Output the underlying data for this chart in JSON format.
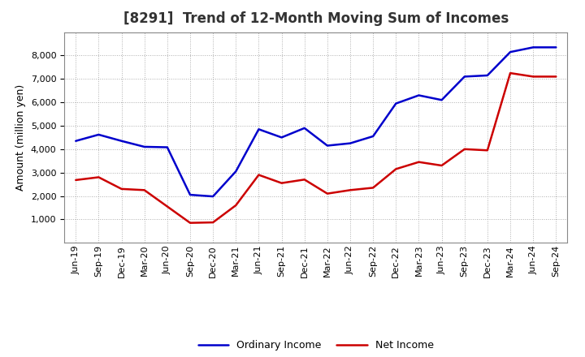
{
  "title": "[8291]  Trend of 12-Month Moving Sum of Incomes",
  "ylabel": "Amount (million yen)",
  "background_color": "#ffffff",
  "plot_bg_color": "#f5f5f5",
  "grid_color": "#999999",
  "x_labels": [
    "Jun-19",
    "Sep-19",
    "Dec-19",
    "Mar-20",
    "Jun-20",
    "Sep-20",
    "Dec-20",
    "Mar-21",
    "Jun-21",
    "Sep-21",
    "Dec-21",
    "Mar-22",
    "Jun-22",
    "Sep-22",
    "Dec-22",
    "Mar-23",
    "Jun-23",
    "Sep-23",
    "Dec-23",
    "Mar-24",
    "Jun-24",
    "Sep-24"
  ],
  "ordinary_income": [
    4350,
    4620,
    4350,
    4100,
    4080,
    2050,
    1980,
    3050,
    4850,
    4500,
    4900,
    4150,
    4250,
    4550,
    5950,
    6300,
    6100,
    7100,
    7150,
    8150,
    8350,
    8350
  ],
  "net_income": [
    2680,
    2800,
    2300,
    2250,
    null,
    850,
    870,
    1600,
    2900,
    2550,
    2700,
    2100,
    2250,
    2350,
    3150,
    3450,
    3300,
    4000,
    3950,
    7250,
    7100,
    7100
  ],
  "ordinary_color": "#0000cc",
  "net_color": "#cc0000",
  "ylim": [
    0,
    9000
  ],
  "yticks": [
    1000,
    2000,
    3000,
    4000,
    5000,
    6000,
    7000,
    8000
  ],
  "line_width": 1.8,
  "title_fontsize": 12,
  "axis_fontsize": 9,
  "tick_fontsize": 8,
  "legend_labels": [
    "Ordinary Income",
    "Net Income"
  ],
  "legend_fontsize": 9
}
